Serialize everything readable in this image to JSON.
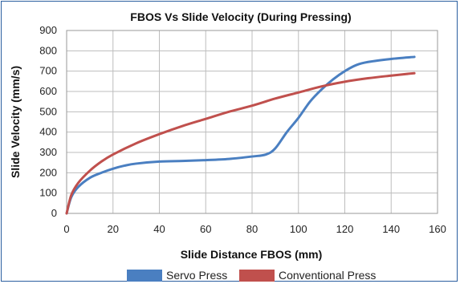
{
  "chart_data": {
    "type": "line",
    "title": "FBOS Vs Slide Velocity (During Pressing)",
    "xlabel": "Slide Distance FBOS (mm)",
    "ylabel": "Slide Velocity (mm/s)",
    "xlim": [
      0,
      160
    ],
    "ylim": [
      0,
      900
    ],
    "x_ticks": [
      "0",
      "20",
      "40",
      "60",
      "80",
      "100",
      "120",
      "140",
      "160"
    ],
    "y_ticks": [
      "0",
      "100",
      "200",
      "300",
      "400",
      "500",
      "600",
      "700",
      "800",
      "900"
    ],
    "grid": true,
    "legend_position": "bottom",
    "series": [
      {
        "name": "Servo Press",
        "color": "#4a7fc1",
        "points": [
          [
            0,
            0
          ],
          [
            2,
            80
          ],
          [
            5,
            130
          ],
          [
            10,
            175
          ],
          [
            15,
            200
          ],
          [
            20,
            220
          ],
          [
            25,
            235
          ],
          [
            30,
            245
          ],
          [
            40,
            255
          ],
          [
            50,
            258
          ],
          [
            60,
            262
          ],
          [
            70,
            268
          ],
          [
            80,
            280
          ],
          [
            86,
            290
          ],
          [
            90,
            320
          ],
          [
            95,
            400
          ],
          [
            100,
            470
          ],
          [
            105,
            550
          ],
          [
            110,
            610
          ],
          [
            115,
            660
          ],
          [
            120,
            700
          ],
          [
            125,
            730
          ],
          [
            130,
            745
          ],
          [
            140,
            760
          ],
          [
            150,
            770
          ]
        ]
      },
      {
        "name": "Conventional Press",
        "color": "#c0504d",
        "points": [
          [
            0,
            0
          ],
          [
            2,
            90
          ],
          [
            5,
            150
          ],
          [
            10,
            210
          ],
          [
            15,
            255
          ],
          [
            20,
            290
          ],
          [
            30,
            345
          ],
          [
            40,
            390
          ],
          [
            50,
            430
          ],
          [
            60,
            465
          ],
          [
            70,
            500
          ],
          [
            80,
            530
          ],
          [
            90,
            565
          ],
          [
            100,
            595
          ],
          [
            110,
            625
          ],
          [
            120,
            648
          ],
          [
            130,
            665
          ],
          [
            140,
            678
          ],
          [
            150,
            690
          ]
        ]
      }
    ]
  }
}
